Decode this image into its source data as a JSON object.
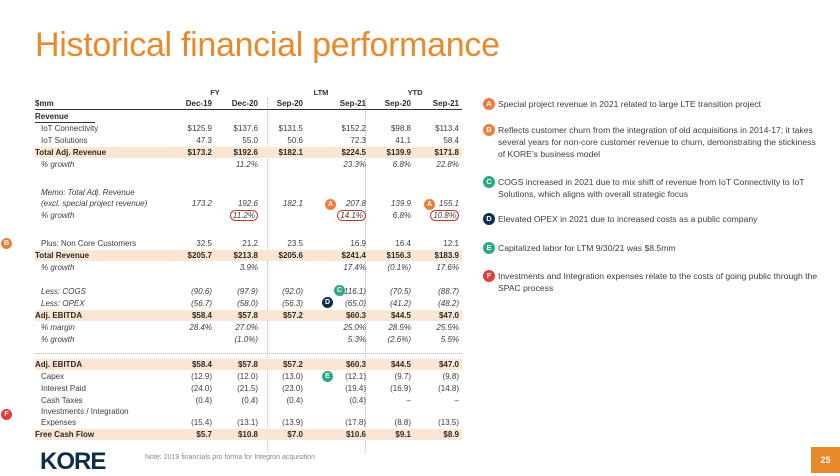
{
  "title": "Historical financial performance",
  "header": {
    "groups": [
      "FY",
      "LTM",
      "YTD"
    ],
    "unit": "$mm",
    "cols": [
      "Dec-19",
      "Dec-20",
      "Sep-20",
      "Sep-21",
      "Sep-20",
      "Sep-21"
    ]
  },
  "rows": [
    {
      "label": "Revenue",
      "v": []
    },
    {
      "label": "IoT Connectivity",
      "v": [
        "$125.9",
        "$137.6",
        "$131.5",
        "$152.2",
        "$98.8",
        "$113.4"
      ]
    },
    {
      "label": "IoT Solutions",
      "v": [
        "47.3",
        "55.0",
        "50.6",
        "72.3",
        "41.1",
        "58.4"
      ]
    },
    {
      "label": "Total Adj. Revenue",
      "v": [
        "$173.2",
        "$192.6",
        "$182.1",
        "$224.5",
        "$139.9",
        "$171.8"
      ]
    },
    {
      "label": "% growth",
      "v": [
        "",
        "11.2%",
        "",
        "23.3%",
        "6.8%",
        "22.8%"
      ]
    },
    {
      "label": "Memo: Total Adj. Revenue",
      "v": []
    },
    {
      "label": "(excl. special project revenue)",
      "v": [
        "173.2",
        "192.6",
        "182.1",
        "207.8",
        "139.9",
        "155.1"
      ]
    },
    {
      "label": "% growth",
      "v": [
        "",
        "11.2%",
        "",
        "14.1%",
        "6.8%",
        "10.8%"
      ]
    },
    {
      "label": "Plus: Non Core Customers",
      "v": [
        "32.5",
        "21.2",
        "23.5",
        "16.9",
        "16.4",
        "12.1"
      ]
    },
    {
      "label": "Total Revenue",
      "v": [
        "$205.7",
        "$213.8",
        "$205.6",
        "$241.4",
        "$156.3",
        "$183.9"
      ]
    },
    {
      "label": "% growth",
      "v": [
        "",
        "3.9%",
        "",
        "17.4%",
        "(0.1%)",
        "17.6%"
      ]
    },
    {
      "label": "Less: COGS",
      "v": [
        "(90.6)",
        "(97.9)",
        "(92.0)",
        "(116.1)",
        "(70.5)",
        "(88.7)"
      ]
    },
    {
      "label": "Less: OPEX",
      "v": [
        "(56.7)",
        "(58.0)",
        "(56.3)",
        "(65.0)",
        "(41.2)",
        "(48.2)"
      ]
    },
    {
      "label": "Adj. EBITDA",
      "v": [
        "$58.4",
        "$57.8",
        "$57.2",
        "$60.3",
        "$44.5",
        "$47.0"
      ]
    },
    {
      "label": "% margin",
      "v": [
        "28.4%",
        "27.0%",
        "",
        "25.0%",
        "28.5%",
        "25.5%"
      ]
    },
    {
      "label": "% growth",
      "v": [
        "",
        "(1.0%)",
        "",
        "5.3%",
        "(2.6%)",
        "5.5%"
      ]
    },
    {
      "label": "Adj. EBITDA",
      "v": [
        "$58.4",
        "$57.8",
        "$57.2",
        "$60.3",
        "$44.5",
        "$47.0"
      ]
    },
    {
      "label": "Capex",
      "v": [
        "(12.9)",
        "(12.0)",
        "(13.0)",
        "(12.1)",
        "(9.7)",
        "(9.8)"
      ]
    },
    {
      "label": "Interest Paid",
      "v": [
        "(24.0)",
        "(21.5)",
        "(23.0)",
        "(19.4)",
        "(16.9)",
        "(14.8)"
      ]
    },
    {
      "label": "Cash Taxes",
      "v": [
        "(0.4)",
        "(0.4)",
        "(0.4)",
        "(0.4)",
        "–",
        "–"
      ]
    },
    {
      "label": "Investments / Integration",
      "v": []
    },
    {
      "label": "Expenses",
      "v": [
        "(15.4)",
        "(13.1)",
        "(13.9)",
        "(17.8)",
        "(8.8)",
        "(13.5)"
      ]
    },
    {
      "label": "Free Cash Flow",
      "v": [
        "$5.7",
        "$10.8",
        "$7.0",
        "$10.6",
        "$9.1",
        "$8.9"
      ]
    }
  ],
  "markers": {
    "A": "A",
    "B": "B",
    "C": "C",
    "D": "D",
    "E": "E",
    "F": "F"
  },
  "notes": [
    {
      "key": "A",
      "text": "Special project revenue in 2021 related to large LTE transition project"
    },
    {
      "key": "B",
      "text": "Reflects customer churn from the integration of old acquisitions in 2014-17; it takes several years for non-core customer revenue to churn, demonstrating the stickiness of KORE’s business model"
    },
    {
      "key": "C",
      "text": "COGS increased in 2021 due to mix shift of revenue from IoT Connectivity to IoT Solutions, which aligns with overall strategic focus"
    },
    {
      "key": "D",
      "text": "Elevated OPEX in 2021 due to increased costs as a public company"
    },
    {
      "key": "E",
      "text": "Capitalized labor for LTM 9/30/21 was $8.5mm"
    },
    {
      "key": "F",
      "text": "Investments and Integration expenses relate to the costs of going public through the SPAC process"
    }
  ],
  "footer": {
    "logo": "KORE",
    "note": "Note: 2019 financials pro forma for Integron acquisition",
    "page": "25"
  },
  "colors": {
    "accent": "#e8892b",
    "navy": "#0f2e4a",
    "teal": "#2aa888",
    "highlight": "#fbe6d3"
  }
}
